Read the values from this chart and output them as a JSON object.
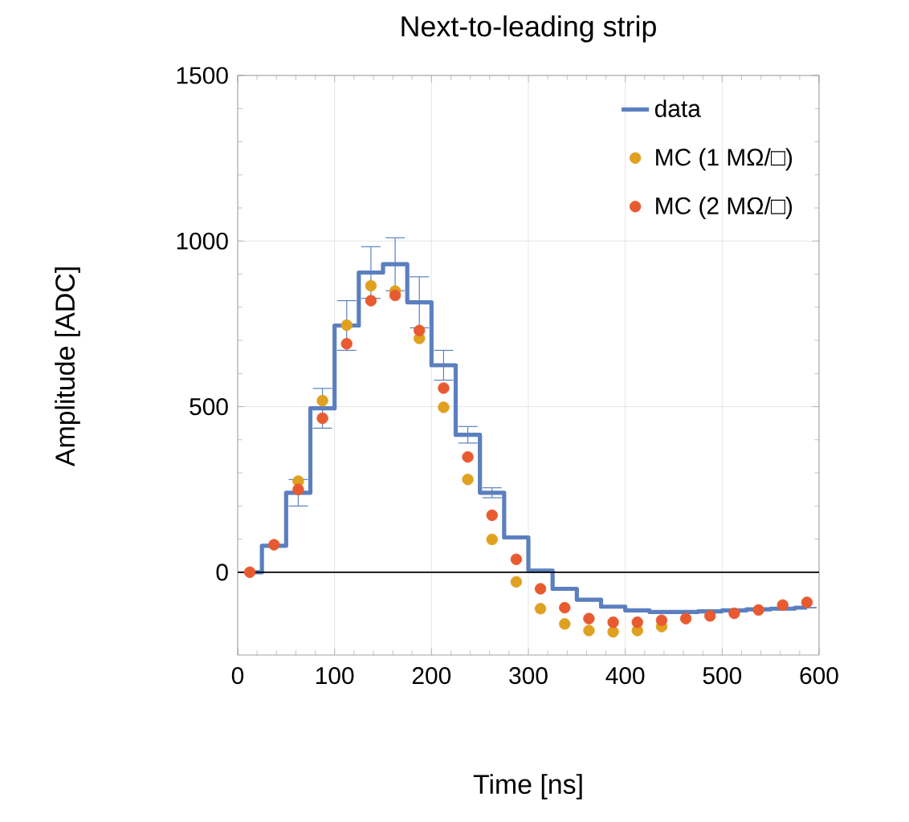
{
  "chart_data": {
    "type": "scatter",
    "title": "Next-to-leading strip",
    "xlabel": "Time [ns]",
    "ylabel": "Amplitude [ADC]",
    "x": [
      12.5,
      37.5,
      62.5,
      87.5,
      112.5,
      137.5,
      162.5,
      187.5,
      212.5,
      237.5,
      262.5,
      287.5,
      312.5,
      337.5,
      362.5,
      387.5,
      412.5,
      437.5,
      462.5,
      487.5,
      512.5,
      537.5,
      562.5,
      587.5
    ],
    "series": [
      {
        "name": "data",
        "type": "step",
        "marker": "none",
        "color": "#5b7fbf",
        "values": [
          0,
          80,
          240,
          495,
          745,
          905,
          930,
          815,
          625,
          415,
          240,
          105,
          5,
          -50,
          -83,
          -104,
          -115,
          -120,
          -120,
          -118,
          -115,
          -112,
          -110,
          -107
        ],
        "errors": [
          null,
          null,
          40,
          60,
          75,
          78,
          80,
          77,
          45,
          25,
          15,
          null,
          null,
          null,
          null,
          null,
          null,
          null,
          null,
          null,
          null,
          null,
          null,
          null
        ]
      },
      {
        "name": "MC (1 MΩ/□)",
        "color": "#e0a020",
        "values": [
          null,
          null,
          275,
          518,
          746,
          865,
          849,
          706,
          498,
          280,
          99,
          -29,
          -110,
          -156,
          -176,
          -180,
          -176,
          -164,
          null,
          null,
          null,
          null,
          null,
          null
        ]
      },
      {
        "name": "MC (2 MΩ/□)",
        "color": "#e85a30",
        "values": [
          0,
          83,
          250,
          465,
          690,
          820,
          836,
          730,
          556,
          348,
          172,
          39,
          -50,
          -107,
          -140,
          -151,
          -151,
          -145,
          -140,
          -132,
          -124,
          -114,
          -99,
          -91
        ]
      }
    ],
    "xlim": [
      0,
      600
    ],
    "ylim": [
      -250,
      1500
    ],
    "xticks": [
      0,
      100,
      200,
      300,
      400,
      500,
      600
    ],
    "yticks": [
      0,
      500,
      1000,
      1500
    ],
    "ref_lines": [
      {
        "axis": "y",
        "value": 0,
        "color": "#000000"
      }
    ],
    "grid": true,
    "legend": "top right",
    "marker": "circle"
  }
}
